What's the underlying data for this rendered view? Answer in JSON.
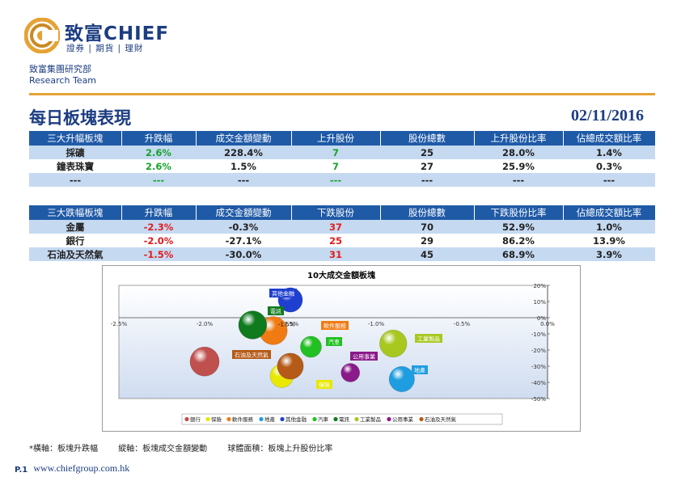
{
  "header": {
    "logo_text": "致富CHIEF",
    "logo_sub": "證券 | 期貨 | 理財",
    "dept_cn": "致富集團研究部",
    "dept_en": "Research Team"
  },
  "title": "每日板塊表現",
  "date": "02/11/2016",
  "colors": {
    "navy": "#1c3d82",
    "header_blue": "#1f5aa7",
    "row_blue": "#c5d9f1",
    "green": "#17a32a",
    "red": "#e21c1c",
    "orange": "#e6a235"
  },
  "up_table": {
    "headers": [
      "三大升幅板塊",
      "升跌幅",
      "成交金額變動",
      "上升股份",
      "股份總數",
      "上升股份比率",
      "佔總成交額比率"
    ],
    "rows": [
      [
        "採礦",
        "2.6%",
        "228.4%",
        "7",
        "25",
        "28.0%",
        "1.4%"
      ],
      [
        "鐘表珠寶",
        "2.6%",
        "1.5%",
        "7",
        "27",
        "25.9%",
        "0.3%"
      ],
      [
        "---",
        "---",
        "---",
        "---",
        "---",
        "---",
        "---"
      ]
    ]
  },
  "down_table": {
    "headers": [
      "三大跌幅板塊",
      "升跌幅",
      "成交金額變動",
      "下跌股份",
      "股份總數",
      "下跌股份比率",
      "佔總成交額比率"
    ],
    "rows": [
      [
        "金屬",
        "-2.3%",
        "-0.3%",
        "37",
        "70",
        "52.9%",
        "1.0%"
      ],
      [
        "銀行",
        "-2.0%",
        "-27.1%",
        "25",
        "29",
        "86.2%",
        "13.9%"
      ],
      [
        "石油及天然氣",
        "-1.5%",
        "-30.0%",
        "31",
        "45",
        "68.9%",
        "3.9%"
      ]
    ]
  },
  "chart_data": {
    "type": "scatter",
    "title": "10大成交金額板塊",
    "x_ticks": [
      "-2.5%",
      "-2.0%",
      "-1.5%",
      "-1.0%",
      "-0.5%",
      "0.0%"
    ],
    "y_ticks": [
      "20%",
      "10%",
      "0%",
      "-10%",
      "-20%",
      "-30%",
      "-40%",
      "-50%"
    ],
    "xlim": [
      -2.5,
      0.0
    ],
    "ylim": [
      -50,
      20
    ],
    "series": [
      {
        "name": "銀行",
        "x": -2.0,
        "y": -27.1,
        "size": 86.2,
        "color": "#c0504d"
      },
      {
        "name": "保險",
        "x": -1.55,
        "y": -36,
        "size": 55,
        "color": "#e8e800"
      },
      {
        "name": "軟件服務",
        "x": -1.6,
        "y": -8,
        "size": 80,
        "color": "#f07b14"
      },
      {
        "name": "地產",
        "x": -0.85,
        "y": -38,
        "size": 65,
        "color": "#1e9de0"
      },
      {
        "name": "其他金融",
        "x": -1.5,
        "y": 11,
        "size": 60,
        "color": "#1f3fd0"
      },
      {
        "name": "汽車",
        "x": -1.38,
        "y": -18,
        "size": 45,
        "color": "#22c022"
      },
      {
        "name": "電訊",
        "x": -1.72,
        "y": -4.5,
        "size": 80,
        "color": "#0f7a1e"
      },
      {
        "name": "工業製品",
        "x": -0.9,
        "y": -16,
        "size": 75,
        "color": "#a8c820"
      },
      {
        "name": "公用事業",
        "x": -1.15,
        "y": -34,
        "size": 35,
        "color": "#8a1a8a"
      },
      {
        "name": "石油及天然氣",
        "x": -1.5,
        "y": -30.0,
        "size": 68.9,
        "color": "#b55a17"
      }
    ],
    "point_labels": [
      {
        "text": "其他金融",
        "color": "#1f3fd0"
      },
      {
        "text": "電訊",
        "color": "#0f7a1e"
      },
      {
        "text": "-1.5%",
        "color": ""
      },
      {
        "text": "軟件服務",
        "color": "#f07b14"
      },
      {
        "text": "汽車",
        "color": "#22c022"
      },
      {
        "text": "工業製品",
        "color": "#a8c820"
      },
      {
        "text": "石油及天然氣",
        "color": "#b55a17"
      },
      {
        "text": "公用事業",
        "color": "#8a1a8a"
      },
      {
        "text": "地產",
        "color": "#1e9de0"
      },
      {
        "text": "保險",
        "color": "#e8e800"
      }
    ],
    "legend": [
      "銀行",
      "保險",
      "軟件服務",
      "地產",
      "其他金融",
      "汽車",
      "電訊",
      "工業製品",
      "公用事業",
      "石油及天然氣"
    ]
  },
  "footnote": {
    "x_axis": "*橫軸：板塊升跌幅",
    "y_axis": "縱軸：板塊成交金額變動",
    "size": "球體面積：板塊上升股份比率"
  },
  "footer": {
    "page": "P.1",
    "url": "www.chiefgroup.com.hk"
  }
}
